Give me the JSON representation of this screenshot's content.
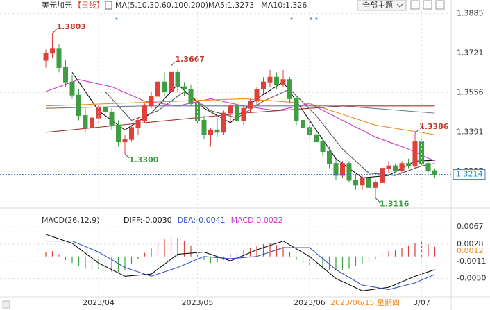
{
  "toolbar": {
    "theme_button": "全部主题"
  },
  "chart_data": [
    {
      "type": "candlestick",
      "title": "美元加元",
      "period": "【日线】",
      "legend_text": "MA(5,10,30,60,100,200)",
      "up_color": "#e0403a",
      "down_color": "#3e9e44",
      "grid": true,
      "ylim": [
        1.3103,
        1.3913
      ],
      "yticks": [
        1.3885,
        1.3721,
        1.3556,
        1.3391,
        1.3227
      ],
      "last_price": 1.3214,
      "candles": [
        [
          1.369,
          1.3735,
          1.366,
          1.372
        ],
        [
          1.372,
          1.3803,
          1.37,
          1.374
        ],
        [
          1.374,
          1.376,
          1.364,
          1.366
        ],
        [
          1.366,
          1.369,
          1.358,
          1.36
        ],
        [
          1.36,
          1.363,
          1.353,
          1.3545
        ],
        [
          1.3545,
          1.357,
          1.344,
          1.346
        ],
        [
          1.346,
          1.349,
          1.339,
          1.341
        ],
        [
          1.341,
          1.347,
          1.34,
          1.345
        ],
        [
          1.345,
          1.351,
          1.343,
          1.3495
        ],
        [
          1.3495,
          1.352,
          1.346,
          1.3475
        ],
        [
          1.3475,
          1.349,
          1.34,
          1.342
        ],
        [
          1.342,
          1.344,
          1.333,
          1.335
        ],
        [
          1.335,
          1.338,
          1.33,
          1.336
        ],
        [
          1.336,
          1.342,
          1.335,
          1.341
        ],
        [
          1.341,
          1.345,
          1.338,
          1.344
        ],
        [
          1.344,
          1.351,
          1.343,
          1.35
        ],
        [
          1.35,
          1.356,
          1.349,
          1.354
        ],
        [
          1.354,
          1.361,
          1.352,
          1.36
        ],
        [
          1.36,
          1.364,
          1.354,
          1.356
        ],
        [
          1.356,
          1.3667,
          1.355,
          1.364
        ],
        [
          1.364,
          1.365,
          1.356,
          1.358
        ],
        [
          1.358,
          1.36,
          1.354,
          1.357
        ],
        [
          1.357,
          1.359,
          1.35,
          1.351
        ],
        [
          1.351,
          1.353,
          1.342,
          1.344
        ],
        [
          1.344,
          1.346,
          1.336,
          1.338
        ],
        [
          1.338,
          1.341,
          1.333,
          1.34
        ],
        [
          1.34,
          1.345,
          1.337,
          1.339
        ],
        [
          1.339,
          1.348,
          1.338,
          1.347
        ],
        [
          1.347,
          1.351,
          1.344,
          1.35
        ],
        [
          1.35,
          1.352,
          1.342,
          1.344
        ],
        [
          1.344,
          1.35,
          1.342,
          1.349
        ],
        [
          1.349,
          1.353,
          1.347,
          1.352
        ],
        [
          1.352,
          1.358,
          1.35,
          1.357
        ],
        [
          1.357,
          1.362,
          1.355,
          1.36
        ],
        [
          1.36,
          1.365,
          1.358,
          1.362
        ],
        [
          1.362,
          1.364,
          1.357,
          1.359
        ],
        [
          1.359,
          1.365,
          1.358,
          1.361
        ],
        [
          1.361,
          1.362,
          1.351,
          1.353
        ],
        [
          1.353,
          1.354,
          1.342,
          1.344
        ],
        [
          1.344,
          1.347,
          1.338,
          1.341
        ],
        [
          1.341,
          1.344,
          1.336,
          1.338
        ],
        [
          1.338,
          1.341,
          1.333,
          1.335
        ],
        [
          1.335,
          1.337,
          1.329,
          1.331
        ],
        [
          1.331,
          1.333,
          1.324,
          1.326
        ],
        [
          1.326,
          1.328,
          1.319,
          1.321
        ],
        [
          1.321,
          1.327,
          1.32,
          1.326
        ],
        [
          1.326,
          1.327,
          1.318,
          1.319
        ],
        [
          1.319,
          1.321,
          1.315,
          1.317
        ],
        [
          1.317,
          1.321,
          1.315,
          1.32
        ],
        [
          1.32,
          1.322,
          1.314,
          1.316
        ],
        [
          1.316,
          1.319,
          1.3116,
          1.318
        ],
        [
          1.318,
          1.325,
          1.317,
          1.324
        ],
        [
          1.324,
          1.327,
          1.322,
          1.325
        ],
        [
          1.325,
          1.326,
          1.322,
          1.323
        ],
        [
          1.323,
          1.327,
          1.322,
          1.326
        ],
        [
          1.326,
          1.328,
          1.324,
          1.325
        ],
        [
          1.325,
          1.3386,
          1.324,
          1.335
        ],
        [
          1.335,
          1.336,
          1.325,
          1.326
        ],
        [
          1.326,
          1.327,
          1.322,
          1.323
        ],
        [
          1.323,
          1.324,
          1.32,
          1.3214
        ]
      ],
      "annotations": [
        {
          "index": 1,
          "label": "1.3803",
          "color": "#c0392b"
        },
        {
          "index": 19,
          "label": "1.3667",
          "color": "#c0392b"
        },
        {
          "index": 12,
          "label": "1.3300",
          "color": "#3e9e44"
        },
        {
          "index": 50,
          "label": "1.3116",
          "color": "#3e9e44"
        },
        {
          "index": 56,
          "label": "1.3386",
          "color": "#c0392b"
        }
      ],
      "ma_lines": [
        {
          "name": "MA5:1.3273",
          "color": "#111111",
          "x": [
            4,
            8,
            12,
            16,
            20,
            24,
            28,
            32,
            36,
            40,
            44,
            48,
            52,
            56,
            59
          ],
          "values": [
            1.364,
            1.348,
            1.34,
            1.347,
            1.359,
            1.349,
            1.343,
            1.353,
            1.36,
            1.344,
            1.328,
            1.32,
            1.321,
            1.327,
            1.3273
          ]
        },
        {
          "name": "MA10:1.326",
          "color": "#555555",
          "x": [
            9,
            13,
            17,
            21,
            25,
            29,
            33,
            37,
            41,
            45,
            49,
            53,
            57,
            59
          ],
          "values": [
            1.356,
            1.344,
            1.348,
            1.356,
            1.348,
            1.345,
            1.352,
            1.357,
            1.346,
            1.332,
            1.322,
            1.321,
            1.325,
            1.326
          ]
        },
        {
          "color": "#cc33cc",
          "x": [
            0,
            5,
            10,
            15,
            20,
            25,
            30,
            35,
            40,
            45,
            50,
            55,
            59
          ],
          "values": [
            1.356,
            1.361,
            1.358,
            1.352,
            1.35,
            1.353,
            1.35,
            1.348,
            1.351,
            1.344,
            1.337,
            1.332,
            1.327
          ]
        },
        {
          "color": "#f08c1e",
          "x": [
            0,
            10,
            20,
            30,
            40,
            50,
            59
          ],
          "values": [
            1.35,
            1.351,
            1.352,
            1.353,
            1.351,
            1.342,
            1.338
          ]
        },
        {
          "color": "#6b7a99",
          "x": [
            0,
            15,
            30,
            45,
            59
          ],
          "values": [
            1.349,
            1.35,
            1.35,
            1.35,
            1.347
          ]
        },
        {
          "color": "#a0362c",
          "x": [
            0,
            15,
            30,
            45,
            59
          ],
          "values": [
            1.339,
            1.343,
            1.347,
            1.35,
            1.35
          ]
        }
      ]
    },
    {
      "type": "macd",
      "title": "MACD(26,12,9)",
      "grid": true,
      "ylim": [
        -0.0087,
        0.0091
      ],
      "yticks": [
        0.0067,
        0.0028,
        -0.0011,
        {
          "value": -0.005,
          "label": "-0.0050"
        }
      ],
      "last_tag": 0.0012,
      "histogram": {
        "name": "MACD:0.0022",
        "up_color": "#e0403a",
        "down_color": "#3e9e44",
        "values": [
          0.001,
          0.0012,
          0.0005,
          -0.0008,
          -0.0015,
          -0.0022,
          -0.0028,
          -0.003,
          -0.003,
          -0.0032,
          -0.0035,
          -0.0036,
          -0.003,
          -0.0018,
          -0.0005,
          0.0008,
          0.002,
          0.0032,
          0.004,
          0.0045,
          0.0042,
          0.0035,
          0.0025,
          0.0008,
          -0.0008,
          -0.0015,
          -0.0014,
          -0.0008,
          0.0005,
          0.001,
          0.0015,
          0.002,
          0.0025,
          0.0028,
          0.003,
          0.0026,
          0.0022,
          0.001,
          -0.0008,
          -0.0015,
          -0.002,
          -0.0025,
          -0.0028,
          -0.003,
          -0.0032,
          -0.003,
          -0.0028,
          -0.0022,
          -0.0018,
          -0.0012,
          -0.0006,
          0.0005,
          0.0012,
          0.0015,
          0.002,
          0.0025,
          0.003,
          0.0033,
          0.0028,
          0.0022
        ]
      },
      "lines": [
        {
          "name": "DIFF:-0.0030",
          "color": "#111111",
          "x": [
            0,
            4,
            8,
            12,
            16,
            20,
            24,
            28,
            32,
            36,
            40,
            44,
            48,
            52,
            56,
            59
          ],
          "values": [
            0.005,
            0.003,
            -0.0015,
            -0.0045,
            -0.004,
            0.0005,
            0.001,
            -0.001,
            0.0015,
            0.0035,
            0,
            -0.005,
            -0.0078,
            -0.007,
            -0.0045,
            -0.003
          ]
        },
        {
          "name": "DEA:-0.0041",
          "color": "#3050c8",
          "x": [
            0,
            4,
            8,
            12,
            16,
            20,
            24,
            28,
            32,
            36,
            40,
            44,
            48,
            52,
            56,
            59
          ],
          "values": [
            0.0035,
            0.0035,
            0.001,
            -0.0025,
            -0.0045,
            -0.0025,
            0,
            -0.0005,
            0,
            0.002,
            0.002,
            -0.003,
            -0.0065,
            -0.0075,
            -0.006,
            -0.0041
          ]
        }
      ],
      "xticks": [
        {
          "value": 8,
          "label": "2023/04"
        },
        {
          "value": 23,
          "label": "2023/05"
        },
        {
          "value": 40,
          "label": "2023/06"
        },
        {
          "value": 57,
          "label": "3/07"
        }
      ],
      "cursor": {
        "value": 48,
        "label": "2023/06/15 星期四"
      }
    }
  ]
}
